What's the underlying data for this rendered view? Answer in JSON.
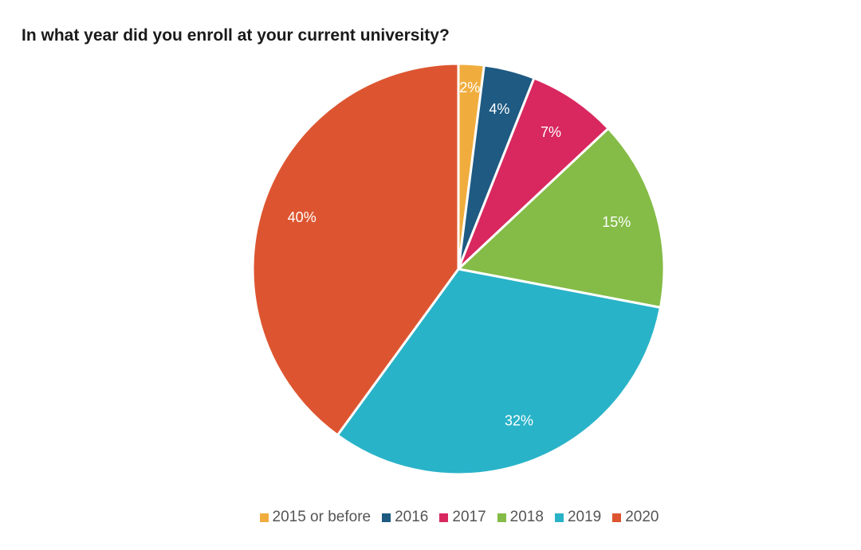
{
  "chart_data": {
    "type": "pie",
    "title": "In what year did you enroll at your current university?",
    "categories": [
      "2015 or before",
      "2016",
      "2017",
      "2018",
      "2019",
      "2020"
    ],
    "values": [
      2,
      4,
      7,
      15,
      32,
      40
    ],
    "data_labels": [
      "2%",
      "4%",
      "7%",
      "15%",
      "32%",
      "40%"
    ],
    "colors": [
      "#f0ad3e",
      "#1e5a82",
      "#d8285f",
      "#84bc47",
      "#29b3c8",
      "#dd5530"
    ],
    "legend_position": "bottom",
    "start_angle": "top (12 o'clock), clockwise"
  }
}
